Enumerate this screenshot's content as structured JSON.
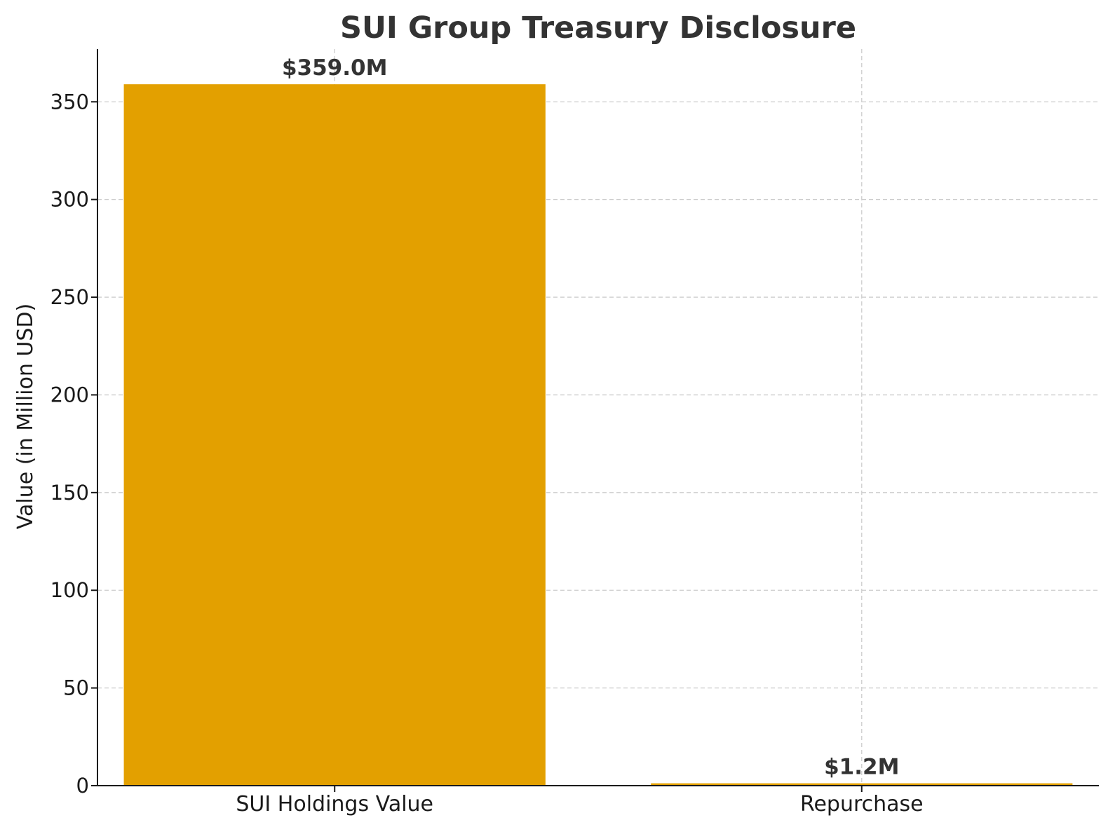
{
  "chart_data": {
    "type": "bar",
    "title": "SUI Group Treasury Disclosure",
    "xlabel": "",
    "ylabel": "Value (in Million USD)",
    "categories": [
      "SUI Holdings Value",
      "Repurchase"
    ],
    "values": [
      359.0,
      1.2
    ],
    "data_labels": [
      "$359.0M",
      "$1.2M"
    ],
    "ylim": [
      0,
      377
    ],
    "yticks": [
      0,
      50,
      100,
      150,
      200,
      250,
      300,
      350
    ],
    "grid": true,
    "bar_color": "#E3A000"
  }
}
